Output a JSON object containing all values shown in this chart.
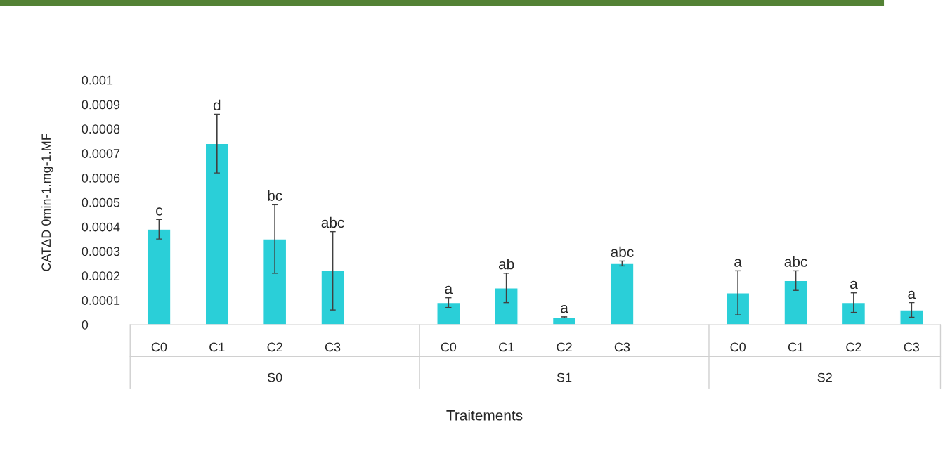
{
  "chart_data": {
    "type": "bar",
    "ylabel": "CATΔD 0min-1.mg-1.MF",
    "xlabel": "Traitements",
    "categories": [
      "C0",
      "C1",
      "C2",
      "C3",
      null,
      "C0",
      "C1",
      "C2",
      "C3",
      null,
      "C0",
      "C1",
      "C2",
      "C3"
    ],
    "annotations": [
      "S0",
      "S1",
      "S2"
    ],
    "values": [
      0.00039,
      0.00074,
      0.00035,
      0.00022,
      null,
      9e-05,
      0.00015,
      3e-05,
      0.00025,
      null,
      0.00013,
      0.00018,
      9e-05,
      6e-05
    ],
    "errors": [
      4e-05,
      0.00012,
      0.00014,
      0.00016,
      null,
      2e-05,
      6e-05,
      2e-06,
      1e-05,
      null,
      9e-05,
      4e-05,
      4e-05,
      3e-05
    ],
    "value_labels": [
      "c",
      "d",
      "bc",
      "abc",
      null,
      "a",
      "ab",
      "a",
      "abc",
      null,
      "a",
      "abc",
      "a",
      "a"
    ],
    "color": "#2acfd8",
    "ylim": [
      0,
      0.001
    ],
    "yticks": [
      0,
      0.0001,
      0.0002,
      0.0003,
      0.0004,
      0.0005,
      0.0006,
      0.0007,
      0.0008,
      0.0009,
      0.001
    ],
    "grid": false
  }
}
